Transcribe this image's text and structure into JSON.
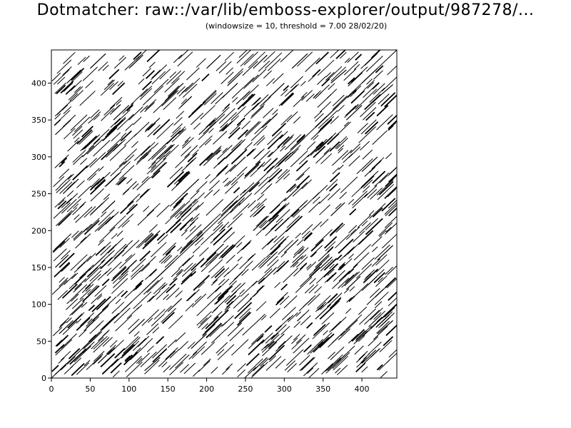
{
  "header": {
    "title": "Dotmatcher: raw::/var/lib/emboss-explorer/output/987278/...",
    "subtitle": "(windowsize = 10, threshold = 7.00  28/02/20)"
  },
  "chart_data": {
    "type": "scatter",
    "title": "Dotmatcher: raw::/var/lib/emboss-explorer/output/987278/...",
    "subtitle": "(windowsize = 10, threshold = 7.00  28/02/20)",
    "xlabel": "",
    "ylabel": "",
    "xlim": [
      0,
      445
    ],
    "ylim": [
      0,
      445
    ],
    "xticks": [
      0,
      50,
      100,
      150,
      200,
      250,
      300,
      350,
      400
    ],
    "yticks": [
      0,
      50,
      100,
      150,
      200,
      250,
      300,
      350,
      400
    ],
    "xtick_labels": [
      "0",
      "50",
      "100",
      "150",
      "200",
      "250",
      "300",
      "350",
      "400"
    ],
    "ytick_labels": [
      "0",
      "50",
      "100",
      "150",
      "200",
      "250",
      "300",
      "350",
      "400"
    ],
    "grid": false,
    "mark_style": "short diagonal match segments (dot plot)",
    "main_diagonal": {
      "x": [
        0,
        445
      ],
      "y": [
        0,
        445
      ]
    },
    "segments": [
      {
        "x": [
          5,
          20
        ],
        "y": [
          5,
          20
        ]
      },
      {
        "x": [
          40,
          62
        ],
        "y": [
          40,
          62
        ]
      },
      {
        "x": [
          90,
          104
        ],
        "y": [
          90,
          104
        ]
      },
      {
        "x": [
          130,
          158
        ],
        "y": [
          130,
          158
        ]
      },
      {
        "x": [
          180,
          196
        ],
        "y": [
          180,
          196
        ]
      },
      {
        "x": [
          230,
          260
        ],
        "y": [
          230,
          260
        ]
      },
      {
        "x": [
          290,
          305
        ],
        "y": [
          290,
          305
        ]
      },
      {
        "x": [
          340,
          370
        ],
        "y": [
          340,
          370
        ]
      },
      {
        "x": [
          400,
          420
        ],
        "y": [
          400,
          420
        ]
      },
      {
        "x": [
          10,
          28
        ],
        "y": [
          60,
          78
        ]
      },
      {
        "x": [
          30,
          45
        ],
        "y": [
          120,
          135
        ]
      },
      {
        "x": [
          60,
          80
        ],
        "y": [
          200,
          220
        ]
      },
      {
        "x": [
          15,
          35
        ],
        "y": [
          250,
          270
        ]
      },
      {
        "x": [
          40,
          55
        ],
        "y": [
          300,
          315
        ]
      },
      {
        "x": [
          80,
          100
        ],
        "y": [
          350,
          370
        ]
      },
      {
        "x": [
          20,
          38
        ],
        "y": [
          400,
          418
        ]
      },
      {
        "x": [
          100,
          118
        ],
        "y": [
          420,
          438
        ]
      },
      {
        "x": [
          150,
          170
        ],
        "y": [
          380,
          400
        ]
      },
      {
        "x": [
          170,
          190
        ],
        "y": [
          250,
          270
        ]
      },
      {
        "x": [
          120,
          140
        ],
        "y": [
          180,
          200
        ]
      },
      {
        "x": [
          200,
          222
        ],
        "y": [
          160,
          182
        ]
      },
      {
        "x": [
          260,
          280
        ],
        "y": [
          200,
          220
        ]
      },
      {
        "x": [
          300,
          320
        ],
        "y": [
          240,
          260
        ]
      },
      {
        "x": [
          330,
          350
        ],
        "y": [
          300,
          320
        ]
      },
      {
        "x": [
          250,
          268
        ],
        "y": [
          330,
          348
        ]
      },
      {
        "x": [
          220,
          240
        ],
        "y": [
          380,
          400
        ]
      },
      {
        "x": [
          310,
          330
        ],
        "y": [
          420,
          440
        ]
      },
      {
        "x": [
          360,
          380
        ],
        "y": [
          400,
          418
        ]
      },
      {
        "x": [
          380,
          400
        ],
        "y": [
          350,
          370
        ]
      },
      {
        "x": [
          400,
          420
        ],
        "y": [
          280,
          300
        ]
      },
      {
        "x": [
          360,
          378
        ],
        "y": [
          220,
          238
        ]
      },
      {
        "x": [
          420,
          440
        ],
        "y": [
          160,
          180
        ]
      },
      {
        "x": [
          380,
          398
        ],
        "y": [
          120,
          138
        ]
      },
      {
        "x": [
          340,
          360
        ],
        "y": [
          80,
          100
        ]
      },
      {
        "x": [
          280,
          300
        ],
        "y": [
          40,
          60
        ]
      },
      {
        "x": [
          320,
          338
        ],
        "y": [
          10,
          28
        ]
      },
      {
        "x": [
          400,
          418
        ],
        "y": [
          20,
          38
        ]
      },
      {
        "x": [
          240,
          258
        ],
        "y": [
          90,
          108
        ]
      },
      {
        "x": [
          180,
          200
        ],
        "y": [
          40,
          60
        ]
      },
      {
        "x": [
          120,
          140
        ],
        "y": [
          10,
          28
        ]
      },
      {
        "x": [
          60,
          78
        ],
        "y": [
          20,
          38
        ]
      },
      {
        "x": [
          150,
          168
        ],
        "y": [
          90,
          108
        ]
      },
      {
        "x": [
          90,
          110
        ],
        "y": [
          140,
          160
        ]
      },
      {
        "x": [
          210,
          228
        ],
        "y": [
          100,
          118
        ]
      },
      {
        "x": [
          270,
          290
        ],
        "y": [
          130,
          150
        ]
      },
      {
        "x": [
          300,
          318
        ],
        "y": [
          170,
          188
        ]
      },
      {
        "x": [
          230,
          250
        ],
        "y": [
          280,
          300
        ]
      },
      {
        "x": [
          130,
          150
        ],
        "y": [
          300,
          320
        ]
      },
      {
        "x": [
          70,
          90
        ],
        "y": [
          260,
          280
        ]
      },
      {
        "x": [
          190,
          210
        ],
        "y": [
          330,
          350
        ]
      },
      {
        "x": [
          280,
          300
        ],
        "y": [
          380,
          400
        ]
      },
      {
        "x": [
          420,
          440
        ],
        "y": [
          380,
          398
        ]
      },
      {
        "x": [
          5,
          22
        ],
        "y": [
          150,
          167
        ]
      },
      {
        "x": [
          5,
          25
        ],
        "y": [
          330,
          350
        ]
      },
      {
        "x": [
          50,
          70
        ],
        "y": [
          420,
          440
        ]
      },
      {
        "x": [
          200,
          218
        ],
        "y": [
          420,
          438
        ]
      },
      {
        "x": [
          260,
          278
        ],
        "y": [
          10,
          28
        ]
      },
      {
        "x": [
          420,
          440
        ],
        "y": [
          60,
          78
        ]
      },
      {
        "x": [
          430,
          445
        ],
        "y": [
          260,
          275
        ]
      },
      {
        "x": [
          100,
          120
        ],
        "y": [
          60,
          80
        ]
      },
      {
        "x": [
          160,
          180
        ],
        "y": [
          210,
          230
        ]
      },
      {
        "x": [
          340,
          358
        ],
        "y": [
          150,
          168
        ]
      },
      {
        "x": [
          260,
          278
        ],
        "y": [
          420,
          438
        ]
      }
    ]
  }
}
